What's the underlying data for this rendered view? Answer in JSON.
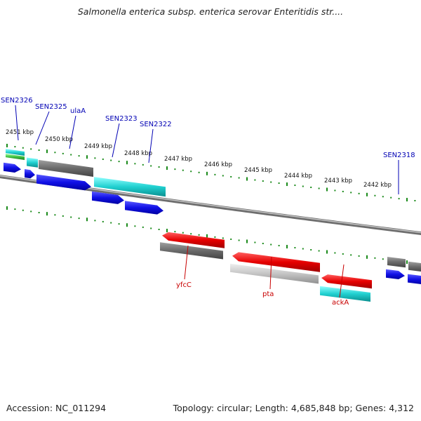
{
  "title": "Salmonella enterica subsp. enterica serovar Enteritidis str....",
  "footer": {
    "accession": "Accession: NC_011294",
    "summary": "Topology: circular; Length: 4,685,848 bp; Genes: 4,312"
  },
  "colors": {
    "plus_label": "#0000b4",
    "minus_label": "#c80000",
    "tick": "#1a8a1a",
    "backbone": "#8a8a8a",
    "blue": "#1010e6",
    "red": "#e60000",
    "cyan": "#20c8c8",
    "green": "#40c040",
    "dark_gray": "#6e6e6e",
    "light_gray": "#c4c4c4"
  },
  "kbp_ticks": [
    "2451 kbp",
    "2450 kbp",
    "2449 kbp",
    "2448 kbp",
    "2447 kbp",
    "2446 kbp",
    "2445 kbp",
    "2444 kbp",
    "2443 kbp",
    "2442 kbp"
  ],
  "genes_plus": [
    {
      "name": "SEN2326",
      "icon": "blue-arrow",
      "color": "blue"
    },
    {
      "name": "SEN2325",
      "icon": "blue-arrow",
      "color": "blue"
    },
    {
      "name": "ulaA",
      "icon": "blue-arrow",
      "color": "blue"
    },
    {
      "name": "SEN2323",
      "icon": "blue-arrow",
      "color": "blue"
    },
    {
      "name": "SEN2322",
      "icon": "blue-arrow",
      "color": "blue"
    },
    {
      "name": "SEN2318",
      "icon": "blue-arrow",
      "color": "blue"
    }
  ],
  "genes_minus": [
    {
      "name": "yfcC",
      "icon": "red-arrow",
      "color": "red"
    },
    {
      "name": "pta",
      "icon": "red-arrow",
      "color": "red"
    },
    {
      "name": "ackA",
      "icon": "red-arrow",
      "color": "red"
    }
  ]
}
